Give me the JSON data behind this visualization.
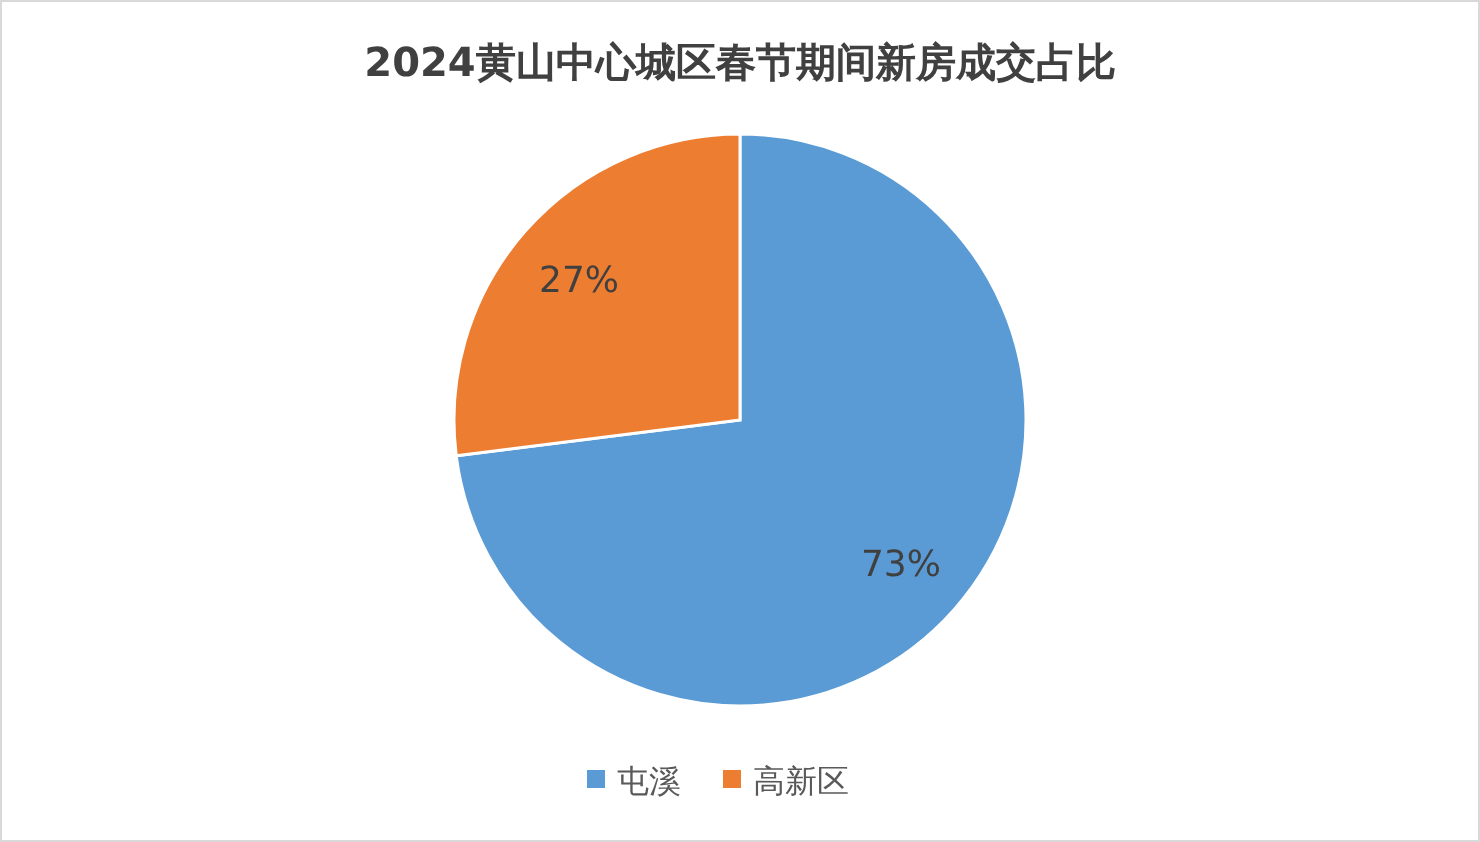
{
  "chart_data": {
    "type": "pie",
    "title": "2024黄山中心城区春节期间新房成交占比",
    "categories": [
      "屯溪",
      "高新区"
    ],
    "values": [
      73,
      27
    ],
    "colors": [
      "#5b9bd5",
      "#ed7d31"
    ],
    "value_labels": [
      "73%",
      "27%"
    ],
    "legend": "bottom"
  }
}
